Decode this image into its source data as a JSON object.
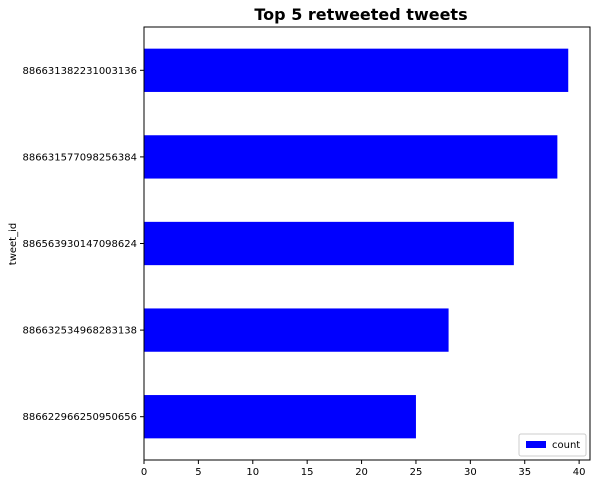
{
  "chart_data": {
    "type": "bar",
    "orientation": "horizontal",
    "title": "Top 5 retweeted tweets",
    "xlabel": "",
    "ylabel": "tweet_id",
    "categories": [
      "886631382231003136",
      "886631577098256384",
      "886563930147098624",
      "886632534968283138",
      "886622966250950656"
    ],
    "series": [
      {
        "name": "count",
        "values": [
          39,
          38,
          34,
          28,
          25
        ]
      }
    ],
    "xlim": [
      0,
      41
    ],
    "xticks": [
      0,
      5,
      10,
      15,
      20,
      25,
      30,
      35,
      40
    ],
    "grid": false,
    "legend_position": "lower-right",
    "bar_color": "#0000ff"
  }
}
